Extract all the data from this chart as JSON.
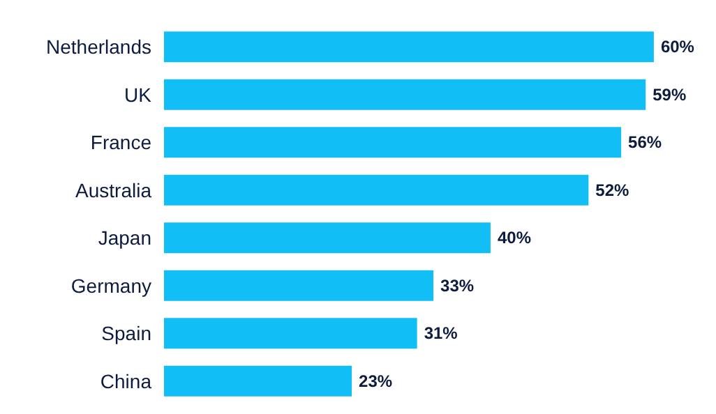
{
  "chart_data": {
    "type": "bar",
    "orientation": "horizontal",
    "categories": [
      "Netherlands",
      "UK",
      "France",
      "Australia",
      "Japan",
      "Germany",
      "Spain",
      "China"
    ],
    "values": [
      60,
      59,
      56,
      52,
      40,
      33,
      31,
      23
    ],
    "value_labels": [
      "60%",
      "59%",
      "56%",
      "52%",
      "40%",
      "33%",
      "31%",
      "23%"
    ],
    "color": "#12bef6",
    "grid": false,
    "tick_labels": false
  }
}
